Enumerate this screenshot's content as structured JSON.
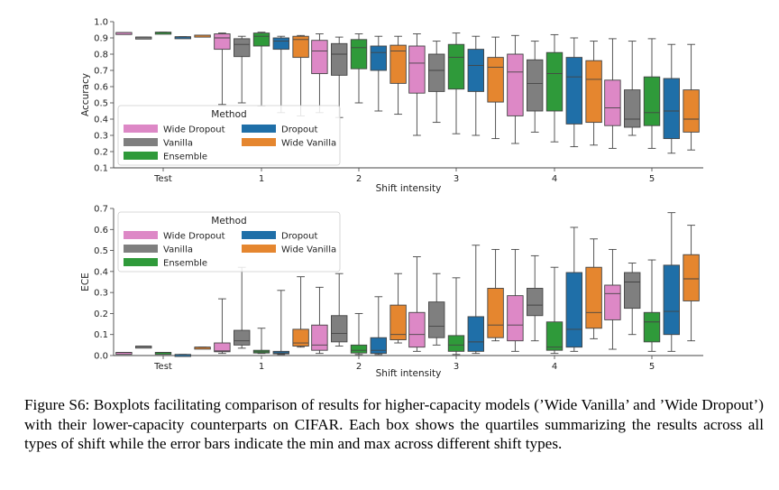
{
  "colors": {
    "Wide Dropout": "#dd88c6",
    "Vanilla": "#7f7f7f",
    "Ensemble": "#2f9a3a",
    "Dropout": "#1f6fa8",
    "Wide Vanilla": "#e5862f"
  },
  "chart_data": [
    {
      "type": "boxplot",
      "ylabel": "Accuracy",
      "xlabel": "Shift intensity",
      "categories": [
        "Test",
        "1",
        "2",
        "3",
        "4",
        "5"
      ],
      "ylim": [
        0.1,
        1.0
      ],
      "yticks": [
        "0.1",
        "0.2",
        "0.3",
        "0.4",
        "0.5",
        "0.6",
        "0.7",
        "0.8",
        "0.9",
        "1.0"
      ],
      "legend": {
        "title": "Method",
        "placement": "lower-left",
        "entries": [
          "Wide Dropout",
          "Vanilla",
          "Ensemble",
          "Dropout",
          "Wide Vanilla"
        ]
      },
      "series": [
        {
          "name": "Wide Dropout",
          "boxes": [
            {
              "min": 0.933,
              "q1": 0.933,
              "median": 0.933,
              "q3": 0.933,
              "max": 0.933
            },
            {
              "min": 0.49,
              "q1": 0.83,
              "median": 0.9,
              "q3": 0.925,
              "max": 0.93
            },
            {
              "min": 0.44,
              "q1": 0.68,
              "median": 0.82,
              "q3": 0.885,
              "max": 0.925
            },
            {
              "min": 0.3,
              "q1": 0.56,
              "median": 0.745,
              "q3": 0.85,
              "max": 0.925
            },
            {
              "min": 0.25,
              "q1": 0.42,
              "median": 0.69,
              "q3": 0.8,
              "max": 0.915
            },
            {
              "min": 0.22,
              "q1": 0.36,
              "median": 0.47,
              "q3": 0.64,
              "max": 0.895
            }
          ]
        },
        {
          "name": "Vanilla",
          "boxes": [
            {
              "min": 0.905,
              "q1": 0.905,
              "median": 0.905,
              "q3": 0.905,
              "max": 0.905
            },
            {
              "min": 0.5,
              "q1": 0.785,
              "median": 0.86,
              "q3": 0.895,
              "max": 0.91
            },
            {
              "min": 0.41,
              "q1": 0.67,
              "median": 0.8,
              "q3": 0.865,
              "max": 0.905
            },
            {
              "min": 0.38,
              "q1": 0.57,
              "median": 0.7,
              "q3": 0.8,
              "max": 0.88
            },
            {
              "min": 0.32,
              "q1": 0.45,
              "median": 0.62,
              "q3": 0.765,
              "max": 0.88
            },
            {
              "min": 0.3,
              "q1": 0.35,
              "median": 0.4,
              "q3": 0.58,
              "max": 0.88
            }
          ]
        },
        {
          "name": "Ensemble",
          "boxes": [
            {
              "min": 0.935,
              "q1": 0.935,
              "median": 0.935,
              "q3": 0.935,
              "max": 0.935
            },
            {
              "min": 0.48,
              "q1": 0.85,
              "median": 0.91,
              "q3": 0.93,
              "max": 0.935
            },
            {
              "min": 0.5,
              "q1": 0.71,
              "median": 0.84,
              "q3": 0.89,
              "max": 0.925
            },
            {
              "min": 0.31,
              "q1": 0.585,
              "median": 0.78,
              "q3": 0.86,
              "max": 0.93
            },
            {
              "min": 0.26,
              "q1": 0.45,
              "median": 0.68,
              "q3": 0.81,
              "max": 0.92
            },
            {
              "min": 0.22,
              "q1": 0.36,
              "median": 0.44,
              "q3": 0.66,
              "max": 0.895
            }
          ]
        },
        {
          "name": "Dropout",
          "boxes": [
            {
              "min": 0.907,
              "q1": 0.907,
              "median": 0.907,
              "q3": 0.907,
              "max": 0.907
            },
            {
              "min": 0.44,
              "q1": 0.83,
              "median": 0.88,
              "q3": 0.9,
              "max": 0.91
            },
            {
              "min": 0.45,
              "q1": 0.7,
              "median": 0.81,
              "q3": 0.85,
              "max": 0.91
            },
            {
              "min": 0.3,
              "q1": 0.57,
              "median": 0.73,
              "q3": 0.83,
              "max": 0.91
            },
            {
              "min": 0.23,
              "q1": 0.37,
              "median": 0.66,
              "q3": 0.78,
              "max": 0.9
            },
            {
              "min": 0.19,
              "q1": 0.28,
              "median": 0.45,
              "q3": 0.65,
              "max": 0.86
            }
          ]
        },
        {
          "name": "Wide Vanilla",
          "boxes": [
            {
              "min": 0.917,
              "q1": 0.917,
              "median": 0.917,
              "q3": 0.917,
              "max": 0.917
            },
            {
              "min": 0.42,
              "q1": 0.78,
              "median": 0.89,
              "q3": 0.91,
              "max": 0.915
            },
            {
              "min": 0.43,
              "q1": 0.62,
              "median": 0.82,
              "q3": 0.855,
              "max": 0.91
            },
            {
              "min": 0.28,
              "q1": 0.505,
              "median": 0.72,
              "q3": 0.78,
              "max": 0.905
            },
            {
              "min": 0.24,
              "q1": 0.38,
              "median": 0.645,
              "q3": 0.76,
              "max": 0.88
            },
            {
              "min": 0.21,
              "q1": 0.32,
              "median": 0.4,
              "q3": 0.58,
              "max": 0.86
            }
          ]
        }
      ]
    },
    {
      "type": "boxplot",
      "ylabel": "ECE",
      "xlabel": "Shift intensity",
      "categories": [
        "Test",
        "1",
        "2",
        "3",
        "4",
        "5"
      ],
      "ylim": [
        0.0,
        0.7
      ],
      "yticks": [
        "0.0",
        "0.1",
        "0.2",
        "0.3",
        "0.4",
        "0.5",
        "0.6",
        "0.7"
      ],
      "legend": {
        "title": "Method",
        "placement": "upper-left",
        "entries": [
          "Wide Dropout",
          "Vanilla",
          "Ensemble",
          "Dropout",
          "Wide Vanilla"
        ]
      },
      "series": [
        {
          "name": "Wide Dropout",
          "boxes": [
            {
              "min": 0.015,
              "q1": 0.015,
              "median": 0.015,
              "q3": 0.015,
              "max": 0.015
            },
            {
              "min": 0.01,
              "q1": 0.018,
              "median": 0.022,
              "q3": 0.06,
              "max": 0.27
            },
            {
              "min": 0.01,
              "q1": 0.025,
              "median": 0.05,
              "q3": 0.145,
              "max": 0.325
            },
            {
              "min": 0.02,
              "q1": 0.04,
              "median": 0.1,
              "q3": 0.205,
              "max": 0.47
            },
            {
              "min": 0.02,
              "q1": 0.07,
              "median": 0.145,
              "q3": 0.285,
              "max": 0.505
            },
            {
              "min": 0.03,
              "q1": 0.17,
              "median": 0.295,
              "q3": 0.335,
              "max": 0.505
            }
          ]
        },
        {
          "name": "Vanilla",
          "boxes": [
            {
              "min": 0.045,
              "q1": 0.045,
              "median": 0.045,
              "q3": 0.045,
              "max": 0.045
            },
            {
              "min": 0.035,
              "q1": 0.05,
              "median": 0.07,
              "q3": 0.12,
              "max": 0.42
            },
            {
              "min": 0.045,
              "q1": 0.065,
              "median": 0.105,
              "q3": 0.19,
              "max": 0.39
            },
            {
              "min": 0.05,
              "q1": 0.085,
              "median": 0.14,
              "q3": 0.255,
              "max": 0.39
            },
            {
              "min": 0.07,
              "q1": 0.19,
              "median": 0.24,
              "q3": 0.32,
              "max": 0.475
            },
            {
              "min": 0.1,
              "q1": 0.225,
              "median": 0.35,
              "q3": 0.395,
              "max": 0.44
            }
          ]
        },
        {
          "name": "Ensemble",
          "boxes": [
            {
              "min": 0.015,
              "q1": 0.015,
              "median": 0.015,
              "q3": 0.015,
              "max": 0.015
            },
            {
              "min": 0.01,
              "q1": 0.012,
              "median": 0.018,
              "q3": 0.025,
              "max": 0.13
            },
            {
              "min": 0.005,
              "q1": 0.012,
              "median": 0.025,
              "q3": 0.05,
              "max": 0.2
            },
            {
              "min": 0.005,
              "q1": 0.02,
              "median": 0.05,
              "q3": 0.095,
              "max": 0.37
            },
            {
              "min": 0.01,
              "q1": 0.025,
              "median": 0.04,
              "q3": 0.16,
              "max": 0.42
            },
            {
              "min": 0.02,
              "q1": 0.065,
              "median": 0.16,
              "q3": 0.205,
              "max": 0.455
            }
          ]
        },
        {
          "name": "Dropout",
          "boxes": [
            {
              "min": 0.005,
              "q1": 0.005,
              "median": 0.005,
              "q3": 0.005,
              "max": 0.005
            },
            {
              "min": 0.005,
              "q1": 0.008,
              "median": 0.012,
              "q3": 0.02,
              "max": 0.31
            },
            {
              "min": 0.005,
              "q1": 0.01,
              "median": 0.025,
              "q3": 0.085,
              "max": 0.28
            },
            {
              "min": 0.01,
              "q1": 0.02,
              "median": 0.065,
              "q3": 0.185,
              "max": 0.525
            },
            {
              "min": 0.02,
              "q1": 0.04,
              "median": 0.125,
              "q3": 0.395,
              "max": 0.61
            },
            {
              "min": 0.02,
              "q1": 0.1,
              "median": 0.21,
              "q3": 0.43,
              "max": 0.68
            }
          ]
        },
        {
          "name": "Wide Vanilla",
          "boxes": [
            {
              "min": 0.04,
              "q1": 0.04,
              "median": 0.04,
              "q3": 0.04,
              "max": 0.04
            },
            {
              "min": 0.04,
              "q1": 0.045,
              "median": 0.06,
              "q3": 0.125,
              "max": 0.375
            },
            {
              "min": 0.06,
              "q1": 0.075,
              "median": 0.1,
              "q3": 0.24,
              "max": 0.39
            },
            {
              "min": 0.07,
              "q1": 0.085,
              "median": 0.145,
              "q3": 0.32,
              "max": 0.505
            },
            {
              "min": 0.08,
              "q1": 0.13,
              "median": 0.205,
              "q3": 0.42,
              "max": 0.555
            },
            {
              "min": 0.07,
              "q1": 0.26,
              "median": 0.365,
              "q3": 0.48,
              "max": 0.62
            }
          ]
        }
      ]
    }
  ],
  "caption": "Figure S6: Boxplots facilitating comparison of results for higher-capacity models (’Wide Vanilla’ and ’Wide Dropout’) with their lower-capacity counterparts on CIFAR. Each box shows the quartiles summarizing the results across all types of shift while the error bars indicate the min and max across different shift types."
}
